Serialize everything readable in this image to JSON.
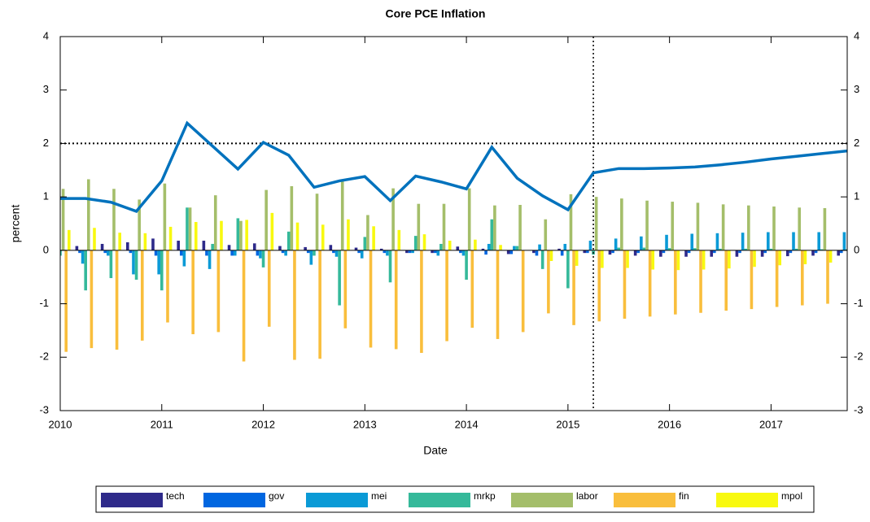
{
  "chart_data": {
    "type": "bar_line",
    "title": "Core PCE Inflation",
    "x_label": "Date",
    "y_label": "percent",
    "x": [
      2010,
      2010.25,
      2010.5,
      2010.75,
      2011,
      2011.25,
      2011.5,
      2011.75,
      2012,
      2012.25,
      2012.5,
      2012.75,
      2013,
      2013.25,
      2013.5,
      2013.75,
      2014,
      2014.25,
      2014.5,
      2014.75,
      2015,
      2015.25,
      2015.5,
      2015.75,
      2016,
      2016.25,
      2016.5,
      2016.75,
      2017,
      2017.25,
      2017.5,
      2017.75
    ],
    "xlim": [
      2010,
      2017.75
    ],
    "xticks": [
      2010,
      2011,
      2012,
      2013,
      2014,
      2015,
      2016,
      2017
    ],
    "ylim": [
      -3,
      4
    ],
    "yticks": [
      -3,
      -2,
      -1,
      0,
      1,
      2,
      3,
      4
    ],
    "target": 2,
    "forecast_start": 2015.25,
    "series": [
      {
        "name": "tech",
        "color": "#2e2a8a",
        "values": [
          0.05,
          0.08,
          0.12,
          0.15,
          0.22,
          0.18,
          0.18,
          0.1,
          0.13,
          0.08,
          0.06,
          0.1,
          0.05,
          0.03,
          -0.05,
          -0.05,
          0.07,
          0.03,
          -0.07,
          -0.05,
          0.03,
          -0.05,
          -0.08,
          -0.1,
          -0.12,
          -0.12,
          -0.12,
          -0.12,
          -0.12,
          -0.11,
          -0.1,
          -0.1
        ]
      },
      {
        "name": "gov",
        "color": "#0066e0",
        "values": [
          -0.05,
          -0.05,
          -0.05,
          -0.05,
          -0.1,
          -0.1,
          -0.1,
          -0.1,
          -0.1,
          -0.05,
          -0.05,
          -0.05,
          -0.05,
          -0.05,
          -0.05,
          -0.05,
          -0.05,
          -0.08,
          -0.07,
          -0.1,
          -0.1,
          -0.05,
          -0.05,
          -0.05,
          -0.05,
          -0.05,
          -0.05,
          -0.05,
          -0.05,
          -0.05,
          -0.05,
          -0.05
        ]
      },
      {
        "name": "mei",
        "color": "#0a9ad6",
        "values": [
          -0.25,
          -0.25,
          -0.1,
          -0.45,
          -0.45,
          -0.3,
          -0.35,
          -0.1,
          -0.15,
          -0.1,
          -0.27,
          -0.12,
          -0.15,
          -0.1,
          -0.05,
          -0.1,
          -0.1,
          0.12,
          0.08,
          0.11,
          0.12,
          0.18,
          0.22,
          0.26,
          0.29,
          0.31,
          0.32,
          0.33,
          0.34,
          0.34,
          0.34,
          0.34
        ]
      },
      {
        "name": "mrkp",
        "color": "#35b99a",
        "values": [
          -0.1,
          -0.75,
          -0.52,
          -0.55,
          -0.75,
          0.8,
          0.12,
          0.6,
          -0.32,
          0.35,
          -0.1,
          -1.03,
          0.25,
          -0.6,
          0.27,
          0.12,
          -0.55,
          0.58,
          0.08,
          -0.35,
          -0.71,
          -0.08,
          0.05,
          0.05,
          0.04,
          0.04,
          0.03,
          0.03,
          0.03,
          0.03,
          0.02,
          0.02
        ]
      },
      {
        "name": "labor",
        "color": "#a4be6a",
        "values": [
          1.15,
          1.33,
          1.15,
          0.95,
          1.25,
          0.8,
          1.03,
          0.55,
          1.13,
          1.2,
          1.06,
          1.3,
          0.66,
          1.16,
          0.87,
          0.87,
          1.16,
          0.84,
          0.85,
          0.58,
          1.05,
          1.0,
          0.97,
          0.93,
          0.91,
          0.89,
          0.86,
          0.84,
          0.82,
          0.8,
          0.79,
          0.78
        ]
      },
      {
        "name": "fin",
        "color": "#f9be3c",
        "values": [
          -1.9,
          -1.83,
          -1.86,
          -1.69,
          -1.35,
          -1.57,
          -1.53,
          -2.08,
          -1.43,
          -2.05,
          -2.03,
          -1.46,
          -1.82,
          -1.85,
          -1.92,
          -1.7,
          -1.45,
          -1.66,
          -1.53,
          -1.18,
          -1.4,
          -1.33,
          -1.28,
          -1.24,
          -1.2,
          -1.17,
          -1.13,
          -1.1,
          -1.06,
          -1.03,
          -1.0,
          -0.98
        ]
      },
      {
        "name": "mpol",
        "color": "#f8f910",
        "values": [
          0.38,
          0.42,
          0.33,
          0.32,
          0.44,
          0.53,
          0.55,
          0.57,
          0.7,
          0.52,
          0.48,
          0.58,
          0.45,
          0.38,
          0.3,
          0.18,
          0.2,
          0.1,
          0.0,
          -0.2,
          -0.29,
          -0.33,
          -0.33,
          -0.36,
          -0.37,
          -0.36,
          -0.34,
          -0.31,
          -0.28,
          -0.26,
          -0.23,
          -0.21
        ]
      }
    ],
    "line": {
      "color": "#0072bd",
      "values": [
        0.97,
        0.97,
        0.9,
        0.73,
        1.3,
        2.38,
        1.95,
        1.52,
        2.02,
        1.78,
        1.18,
        1.3,
        1.38,
        0.93,
        1.39,
        1.28,
        1.15,
        1.93,
        1.35,
        1.02,
        0.76,
        1.45,
        1.53,
        1.53,
        1.54,
        1.56,
        1.6,
        1.65,
        1.71,
        1.76,
        1.81,
        1.86
      ]
    }
  }
}
